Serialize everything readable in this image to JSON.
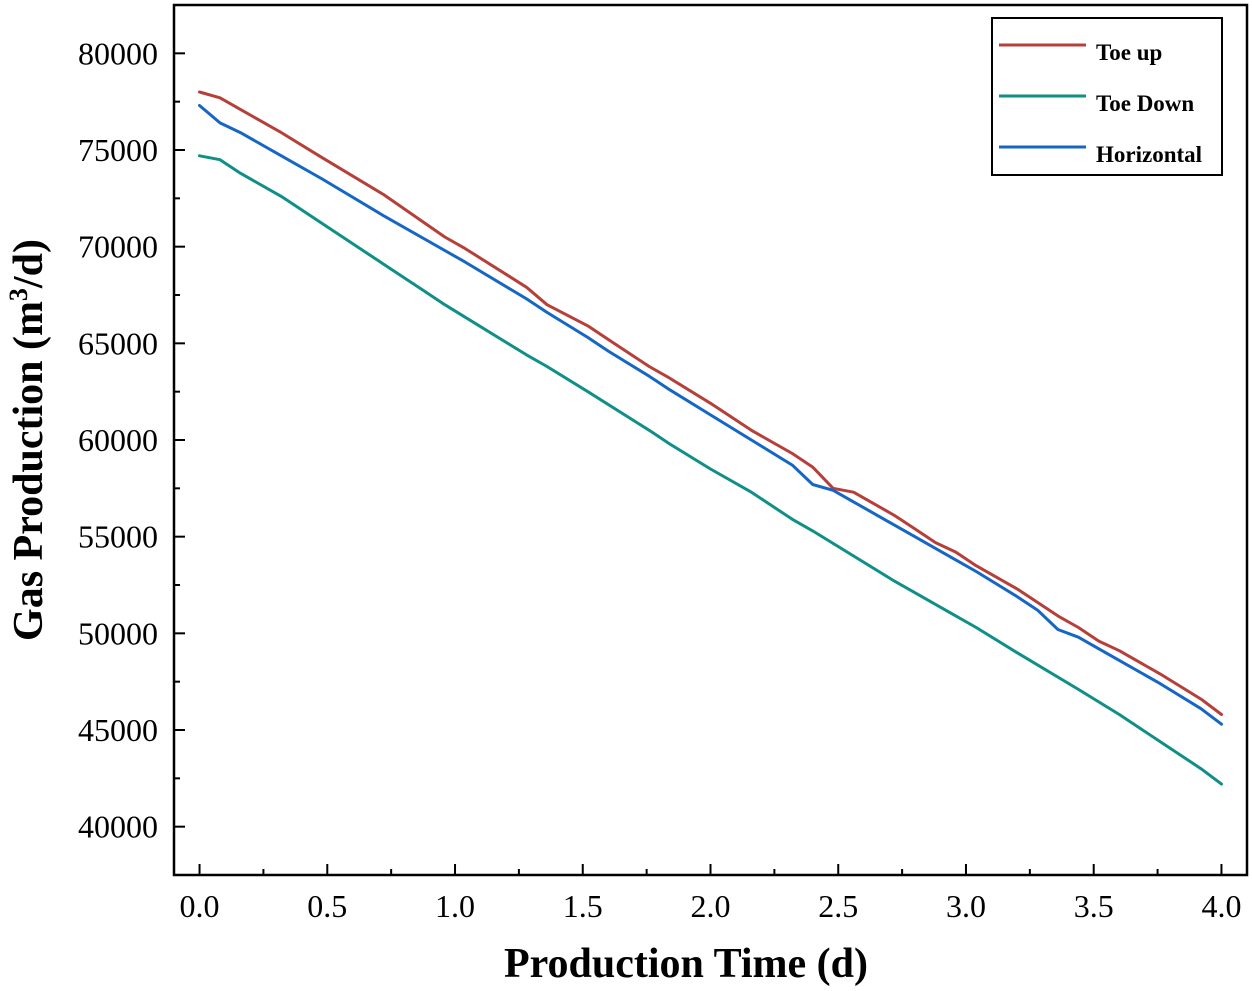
{
  "chart_data": {
    "type": "line",
    "title": "",
    "xlabel": "Production Time (d)",
    "ylabel": "Gas Production (m",
    "ylabel_superscript": "3",
    "ylabel_suffix": "/d)",
    "xlim": [
      -0.1,
      4.1
    ],
    "ylim": [
      37500,
      82500
    ],
    "xticks": [
      0.0,
      0.5,
      1.0,
      1.5,
      2.0,
      2.5,
      3.0,
      3.5,
      4.0
    ],
    "xtick_labels": [
      "0.0",
      "0.5",
      "1.0",
      "1.5",
      "2.0",
      "2.5",
      "3.0",
      "3.5",
      "4.0"
    ],
    "yticks": [
      40000,
      45000,
      50000,
      55000,
      60000,
      65000,
      70000,
      75000,
      80000
    ],
    "ytick_labels": [
      "40000",
      "45000",
      "50000",
      "55000",
      "60000",
      "65000",
      "70000",
      "75000",
      "80000"
    ],
    "grid": false,
    "legend_position": "top-right",
    "series": [
      {
        "name": "Toe up",
        "color": "#b5403a",
        "x": [
          0.0,
          0.08,
          0.16,
          0.32,
          0.48,
          0.72,
          0.96,
          1.04,
          1.28,
          1.36,
          1.52,
          1.6,
          1.76,
          1.84,
          2.0,
          2.16,
          2.32,
          2.4,
          2.48,
          2.56,
          2.72,
          2.8,
          2.88,
          2.96,
          3.04,
          3.2,
          3.28,
          3.36,
          3.44,
          3.52,
          3.6,
          3.76,
          3.92,
          4.0
        ],
        "values": [
          78000,
          77700,
          77100,
          75900,
          74600,
          72700,
          70500,
          69900,
          67900,
          67000,
          65900,
          65200,
          63800,
          63200,
          61900,
          60500,
          59300,
          58600,
          57500,
          57300,
          56100,
          55400,
          54700,
          54200,
          53500,
          52300,
          51600,
          50900,
          50300,
          49600,
          49100,
          47900,
          46600,
          45800
        ]
      },
      {
        "name": "Toe Down",
        "color": "#0f8f85",
        "x": [
          0.0,
          0.08,
          0.16,
          0.32,
          0.48,
          0.72,
          0.88,
          0.96,
          1.28,
          1.36,
          1.52,
          1.76,
          1.84,
          2.0,
          2.16,
          2.32,
          2.4,
          2.56,
          2.72,
          2.8,
          2.96,
          3.04,
          3.2,
          3.44,
          3.6,
          3.76,
          3.92,
          4.0
        ],
        "values": [
          74700,
          74500,
          73800,
          72600,
          71200,
          69100,
          67700,
          67000,
          64400,
          63800,
          62500,
          60500,
          59800,
          58500,
          57300,
          55900,
          55300,
          54000,
          52700,
          52100,
          50900,
          50300,
          49000,
          47100,
          45800,
          44400,
          43000,
          42200
        ]
      },
      {
        "name": "Horizontal",
        "color": "#1566c5",
        "x": [
          0.0,
          0.08,
          0.16,
          0.32,
          0.48,
          0.72,
          0.96,
          1.04,
          1.28,
          1.36,
          1.52,
          1.6,
          1.76,
          1.84,
          2.0,
          2.16,
          2.32,
          2.4,
          2.48,
          2.56,
          2.72,
          2.8,
          2.88,
          2.96,
          3.04,
          3.2,
          3.28,
          3.36,
          3.44,
          3.52,
          3.6,
          3.76,
          3.92,
          4.0
        ],
        "values": [
          77300,
          76400,
          75900,
          74700,
          73500,
          71600,
          69800,
          69200,
          67300,
          66600,
          65300,
          64600,
          63300,
          62600,
          61300,
          60000,
          58700,
          57700,
          57400,
          56800,
          55600,
          55000,
          54400,
          53800,
          53200,
          51900,
          51200,
          50200,
          49800,
          49200,
          48600,
          47400,
          46100,
          45300
        ]
      }
    ]
  }
}
